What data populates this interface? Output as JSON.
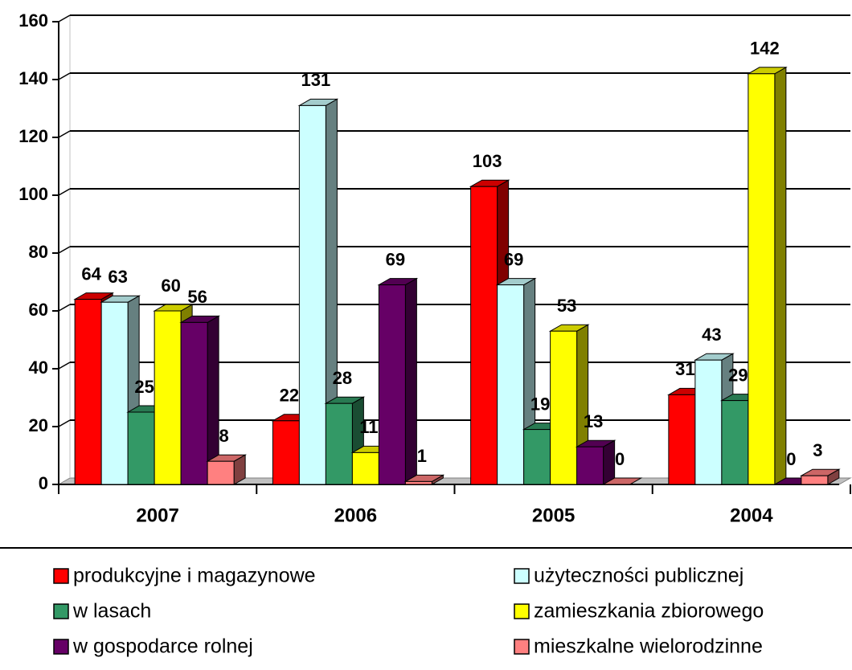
{
  "chart_data": {
    "type": "bar3d",
    "categories": [
      "2007",
      "2006",
      "2005",
      "2004"
    ],
    "series": [
      {
        "name": "produkcyjne i magazynowe",
        "color": "#ff0000",
        "values": [
          64,
          22,
          103,
          31
        ]
      },
      {
        "name": "użyteczności publicznej",
        "color": "#ccffff",
        "values": [
          63,
          131,
          69,
          43
        ]
      },
      {
        "name": "w lasach",
        "color": "#339966",
        "values": [
          25,
          28,
          19,
          29
        ]
      },
      {
        "name": "zamieszkania zbiorowego",
        "color": "#ffff00",
        "values": [
          60,
          11,
          53,
          142
        ]
      },
      {
        "name": "w gospodarce rolnej",
        "color": "#660066",
        "values": [
          56,
          69,
          13,
          0
        ]
      },
      {
        "name": "mieszkalne wielorodzinne",
        "color": "#ff8080",
        "values": [
          8,
          1,
          0,
          3
        ]
      }
    ],
    "ylim": [
      0,
      160
    ],
    "yticks": [
      0,
      20,
      40,
      60,
      80,
      100,
      120,
      140,
      160
    ],
    "grid": true,
    "legend": "bottom"
  }
}
